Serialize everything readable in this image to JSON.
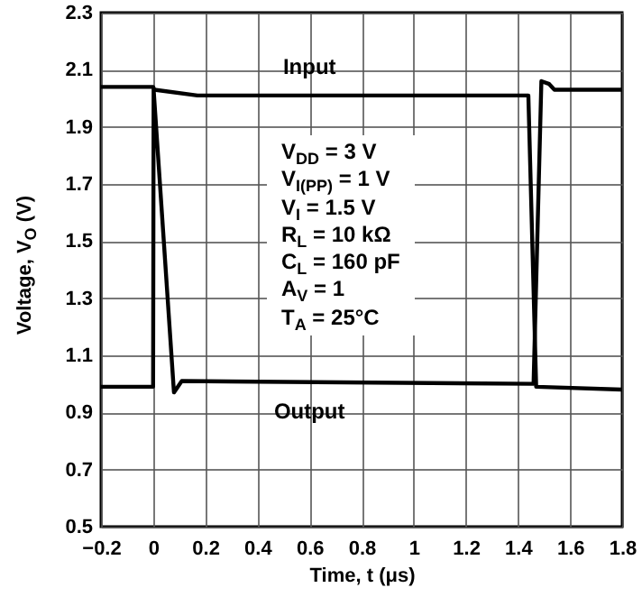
{
  "chart_data": {
    "type": "line",
    "xlabel": "Time, t (μs)",
    "ylabel": "Voltage, V$_{O}$ (V)",
    "series": [
      {
        "name": "Input",
        "color": "#000000",
        "x": [
          -0.2,
          0,
          0.005,
          0.17,
          1.44,
          1.47,
          1.8
        ],
        "values": [
          2.04,
          2.04,
          2.03,
          2.01,
          2.01,
          0.99,
          0.98
        ]
      },
      {
        "name": "Output",
        "color": "#000000",
        "x": [
          -0.2,
          0,
          0.002,
          0.08,
          0.11,
          1.46,
          1.49,
          1.52,
          1.54,
          1.8
        ],
        "values": [
          0.99,
          0.99,
          2.03,
          0.97,
          1.01,
          1.0,
          2.06,
          2.05,
          2.03,
          2.03
        ]
      }
    ],
    "xlim": [
      -0.2,
      1.8
    ],
    "xticks": [
      -0.2,
      0,
      0.2,
      0.4,
      0.6,
      0.8,
      1,
      1.2,
      1.4,
      1.6,
      1.8
    ],
    "ylim": [
      0.5,
      2.3
    ],
    "yticks": [
      0.5,
      0.7,
      0.9,
      1.1,
      1.3,
      1.5,
      1.7,
      1.9,
      2.1,
      2.3
    ],
    "grid": true,
    "annotations": [
      "V$_{DD}$ = 3 V",
      "V$_{I(PP)}$ = 1 V",
      "V$_{I}$ = 1.5 V",
      "R$_{L}$ = 10 kΩ",
      "C$_{L}$ = 160 pF",
      "A$_{V}$ = 1",
      "T$_{A}$ = 25°C"
    ]
  }
}
